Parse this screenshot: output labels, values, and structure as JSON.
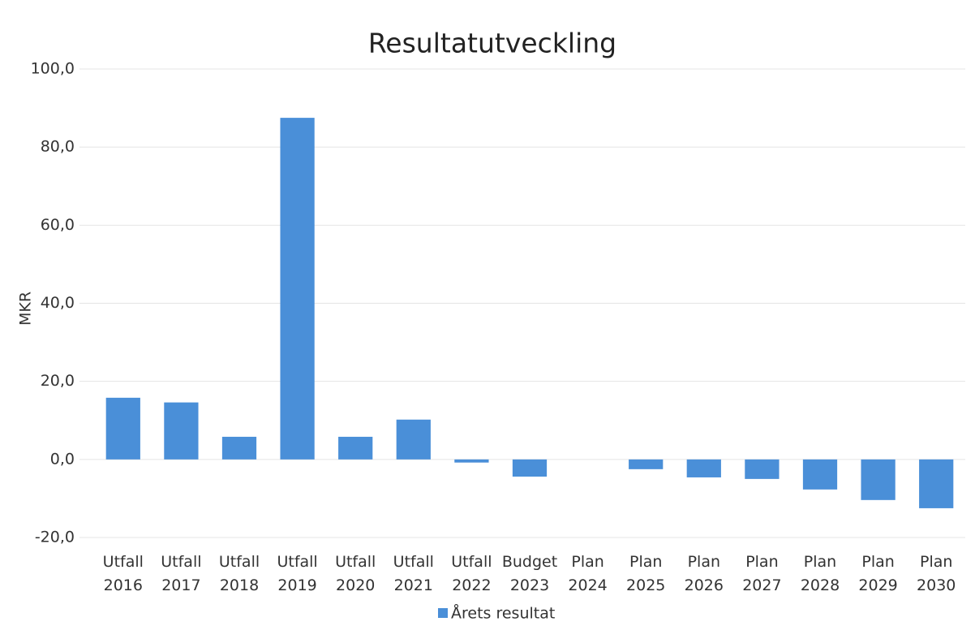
{
  "chart_data": {
    "type": "bar",
    "title": "Resultatutveckling",
    "ylabel": "MKR",
    "categories": [
      "Utfall 2016",
      "Utfall 2017",
      "Utfall 2018",
      "Utfall 2019",
      "Utfall 2020",
      "Utfall 2021",
      "Utfall 2022",
      "Budget 2023",
      "Plan 2024",
      "Plan 2025",
      "Plan 2026",
      "Plan 2027",
      "Plan 2028",
      "Plan 2029",
      "Plan 2030"
    ],
    "series": [
      {
        "name": "Årets resultat",
        "color": "#4a8fd8",
        "values": [
          15.8,
          14.6,
          5.8,
          87.5,
          5.8,
          10.2,
          -0.8,
          -4.4,
          0,
          -2.5,
          -4.6,
          -5.0,
          -7.7,
          -10.4,
          -12.5
        ]
      }
    ],
    "ylim": [
      -20,
      100
    ],
    "yticks": [
      {
        "value": -20,
        "label": "-20,0"
      },
      {
        "value": 0,
        "label": "0,0"
      },
      {
        "value": 20,
        "label": "20,0"
      },
      {
        "value": 40,
        "label": "40,0"
      },
      {
        "value": 60,
        "label": "60,0"
      },
      {
        "value": 80,
        "label": "80,0"
      },
      {
        "value": 100,
        "label": "100,0"
      }
    ],
    "grid": true,
    "legend": "bottom"
  }
}
